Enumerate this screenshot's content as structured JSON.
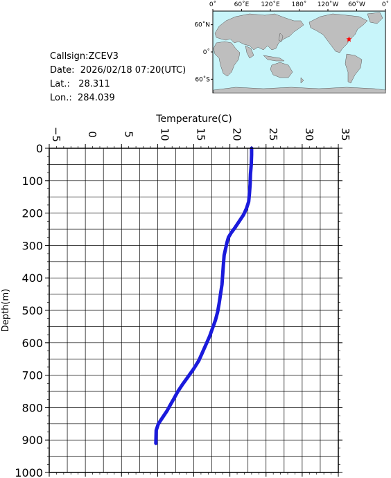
{
  "info": {
    "callsign_label": "Callsign:",
    "callsign": "ZCEV3",
    "date_label": "Date:",
    "date": "2026/02/18 07:20(UTC)",
    "lat_label": "Lat.:",
    "lat": "28.311",
    "lon_label": "Lon.:",
    "lon": "284.039"
  },
  "map": {
    "top_ticks": [
      "0˚",
      "60˚E",
      "120˚E",
      "180˚",
      "120˚W",
      "60˚W",
      "0˚"
    ],
    "lat_ticks": [
      "60˚N",
      "0˚",
      "60˚S"
    ],
    "station_lat": 28.311,
    "station_lon": 284.039,
    "ocean_color": "#c8f5fa",
    "land_color": "#bebebe",
    "marker_color": "#ff0000"
  },
  "chart_data": {
    "type": "line",
    "title": "",
    "xlabel": "Temperature(C)",
    "ylabel": "Depth(m)",
    "xlim": [
      -5,
      35
    ],
    "ylim": [
      1000,
      0
    ],
    "x_ticks": [
      -5,
      0,
      5,
      10,
      15,
      20,
      25,
      30,
      35
    ],
    "y_ticks": [
      0,
      100,
      200,
      300,
      400,
      500,
      600,
      700,
      800,
      900,
      1000
    ],
    "grid": true,
    "line_color": "#1a1adc",
    "series": [
      {
        "temperature": [
          23.0,
          23.0,
          22.95,
          22.85,
          22.8,
          22.7,
          22.6,
          22.3,
          21.9,
          21.3,
          20.7,
          20.2,
          19.8,
          19.6,
          19.4,
          19.2,
          19.1,
          19.0,
          18.9,
          18.7,
          18.5,
          18.3,
          18.0,
          17.6,
          17.2,
          16.7,
          16.2,
          15.7,
          15.0,
          14.2,
          13.4,
          12.8,
          12.3,
          11.8,
          11.3,
          10.7,
          10.1,
          9.8,
          9.75
        ],
        "depth": [
          0,
          20,
          50,
          80,
          110,
          140,
          165,
          185,
          205,
          225,
          245,
          260,
          275,
          290,
          310,
          330,
          360,
          390,
          420,
          450,
          480,
          505,
          530,
          555,
          580,
          605,
          630,
          655,
          680,
          705,
          730,
          750,
          770,
          790,
          810,
          830,
          850,
          870,
          910
        ]
      }
    ]
  }
}
